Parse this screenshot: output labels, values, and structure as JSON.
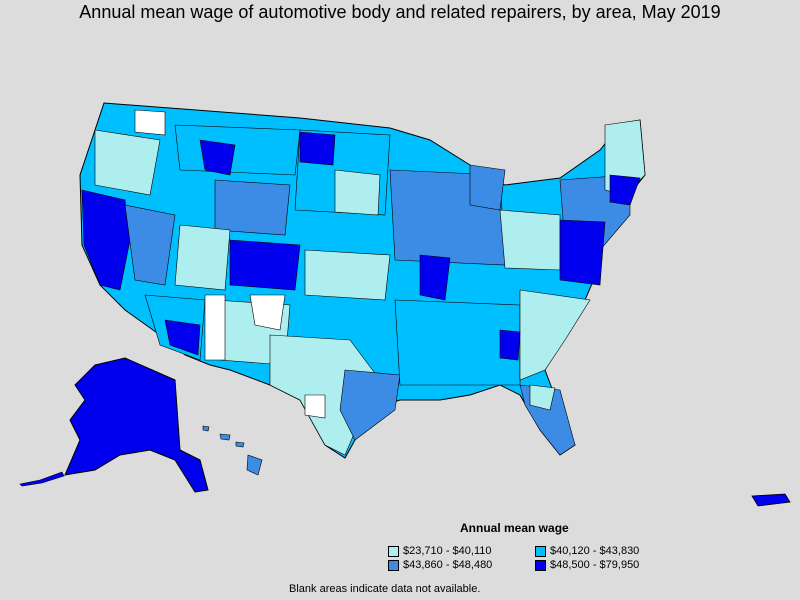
{
  "title": "Annual mean wage of automotive body and related repairers, by area, May 2019",
  "legend": {
    "title": "Annual mean wage",
    "items": [
      {
        "label": "$23,710 - $40,110",
        "color": "#aeeeee"
      },
      {
        "label": "$40,120 - $43,830",
        "color": "#00bfff"
      },
      {
        "label": "$43,860 - $48,480",
        "color": "#3c8ce6"
      },
      {
        "label": "$48,500 - $79,950",
        "color": "#0000ee"
      }
    ]
  },
  "footnote": "Blank areas indicate data not available.",
  "colors": {
    "background": "#dcdcdc",
    "no_data": "#ffffff",
    "border": "#000000"
  }
}
